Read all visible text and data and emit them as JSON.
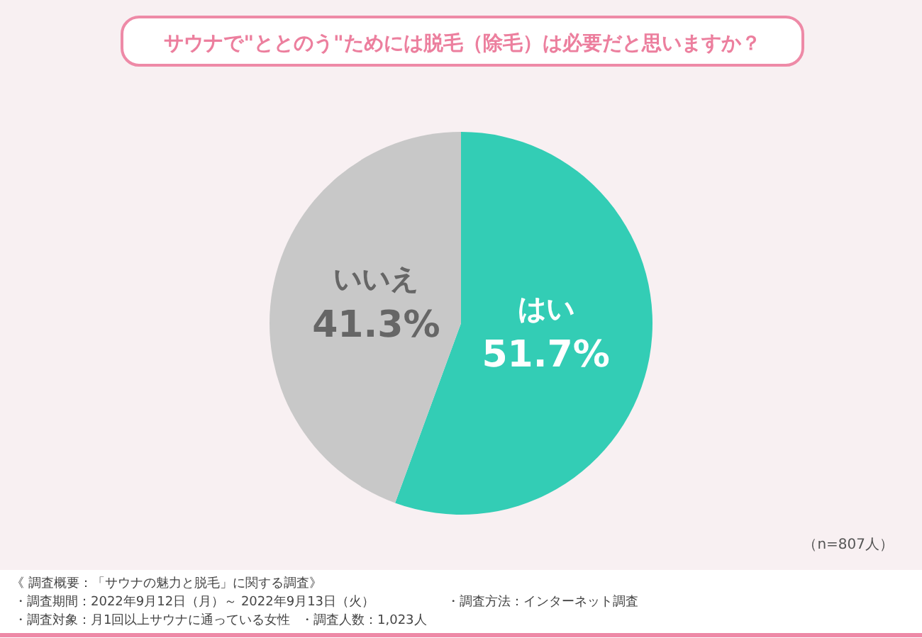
{
  "chart_data": {
    "type": "pie",
    "title": "サウナで\"ととのう\"ためには脱毛（除毛）は必要だと思いますか？",
    "categories": [
      "はい",
      "いいえ"
    ],
    "values": [
      51.7,
      41.3
    ],
    "colors": [
      "#33cdb5",
      "#c8c8c8"
    ],
    "value_labels": [
      "51.7%",
      "41.3%"
    ],
    "annotations": [
      "（n=807人）",
      "《 調査概要：「サウナの魅力と脱毛」に関する調査》",
      "・調査期間：2022年9月12日（月）～ 2022年9月13日（火）",
      "・調査方法：インターネット調査",
      "・調査対象：月1回以上サウナに通っている女性",
      "・調査人数：1,023人"
    ]
  }
}
